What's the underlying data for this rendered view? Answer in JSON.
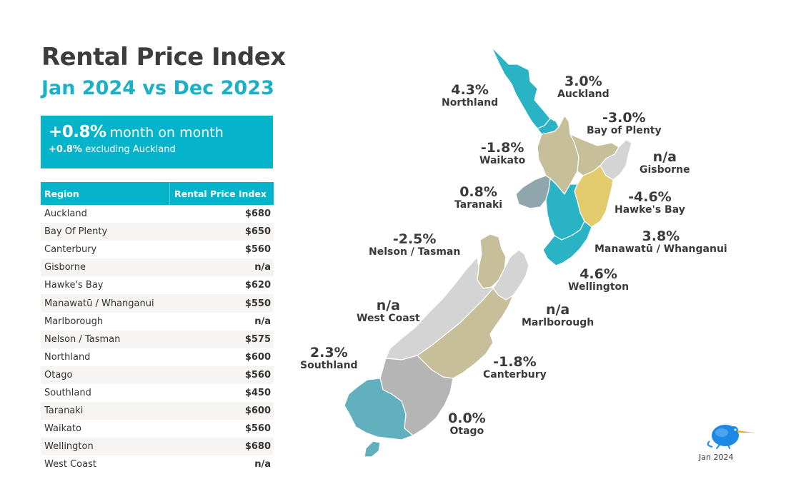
{
  "header": {
    "title": "Rental Price Index",
    "subtitle": "Jan 2024 vs Dec 2023"
  },
  "summary": {
    "headline_value": "+0.8%",
    "headline_text": "month on month",
    "secondary_value": "+0.8%",
    "secondary_text": "excluding Auckland"
  },
  "table": {
    "columns": [
      "Region",
      "Rental Price Index"
    ],
    "rows": [
      {
        "region": "Auckland",
        "value": "$680"
      },
      {
        "region": "Bay Of Plenty",
        "value": "$650"
      },
      {
        "region": "Canterbury",
        "value": "$560"
      },
      {
        "region": "Gisborne",
        "value": "n/a"
      },
      {
        "region": "Hawke's Bay",
        "value": "$620"
      },
      {
        "region": "Manawatū / Whanganui",
        "value": "$550"
      },
      {
        "region": "Marlborough",
        "value": "n/a"
      },
      {
        "region": "Nelson / Tasman",
        "value": "$575"
      },
      {
        "region": "Northland",
        "value": "$600"
      },
      {
        "region": "Otago",
        "value": "$560"
      },
      {
        "region": "Southland",
        "value": "$450"
      },
      {
        "region": "Taranaki",
        "value": "$600"
      },
      {
        "region": "Waikato",
        "value": "$560"
      },
      {
        "region": "Wellington",
        "value": "$680"
      },
      {
        "region": "West Coast",
        "value": "n/a"
      }
    ]
  },
  "map_labels": {
    "northland": {
      "change": "4.3%",
      "region": "Northland"
    },
    "auckland": {
      "change": "3.0%",
      "region": "Auckland"
    },
    "bay_of_plenty": {
      "change": "-3.0%",
      "region": "Bay of Plenty"
    },
    "waikato": {
      "change": "-1.8%",
      "region": "Waikato"
    },
    "gisborne": {
      "change": "n/a",
      "region": "Gisborne"
    },
    "taranaki": {
      "change": "0.8%",
      "region": "Taranaki"
    },
    "hawkes_bay": {
      "change": "-4.6%",
      "region": "Hawke's Bay"
    },
    "manawatu": {
      "change": "3.8%",
      "region": "Manawatū / Whanganui"
    },
    "nelson_tasman": {
      "change": "-2.5%",
      "region": "Nelson / Tasman"
    },
    "wellington": {
      "change": "4.6%",
      "region": "Wellington"
    },
    "west_coast": {
      "change": "n/a",
      "region": "West Coast"
    },
    "marlborough": {
      "change": "n/a",
      "region": "Marlborough"
    },
    "southland": {
      "change": "2.3%",
      "region": "Southland"
    },
    "canterbury": {
      "change": "-1.8%",
      "region": "Canterbury"
    },
    "otago": {
      "change": "0.0%",
      "region": "Otago"
    }
  },
  "footer": {
    "date": "Jan 2024"
  },
  "colors": {
    "accent": "#05b4ca",
    "title": "#3d3d3d",
    "teal_strong": "#2ab3c4",
    "teal_muted": "#62b0bd",
    "khaki": "#c7bf99",
    "yellow": "#e2cb6c",
    "grey_light": "#d4d4d4",
    "grey_mid": "#b5b5b5",
    "slate": "#8fa6ad"
  },
  "icons": {
    "logo": "kiwi-bird-logo"
  }
}
